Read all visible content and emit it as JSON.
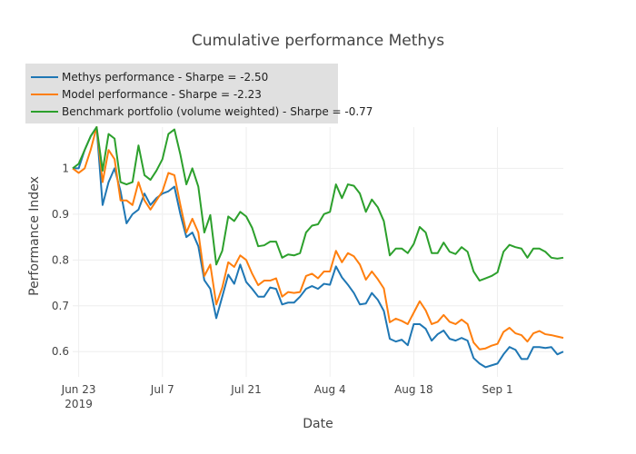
{
  "chart_data": {
    "type": "line",
    "title": "Cumulative performance Methys",
    "x_label": "Date",
    "y_label": "Performance Index",
    "x": [
      "2019-06-22",
      "2019-06-23",
      "2019-06-24",
      "2019-06-25",
      "2019-06-26",
      "2019-06-27",
      "2019-06-28",
      "2019-06-29",
      "2019-06-30",
      "2019-07-01",
      "2019-07-02",
      "2019-07-03",
      "2019-07-04",
      "2019-07-05",
      "2019-07-06",
      "2019-07-07",
      "2019-07-08",
      "2019-07-09",
      "2019-07-10",
      "2019-07-11",
      "2019-07-12",
      "2019-07-13",
      "2019-07-14",
      "2019-07-15",
      "2019-07-16",
      "2019-07-17",
      "2019-07-18",
      "2019-07-19",
      "2019-07-20",
      "2019-07-21",
      "2019-07-22",
      "2019-07-23",
      "2019-07-24",
      "2019-07-25",
      "2019-07-26",
      "2019-07-27",
      "2019-07-28",
      "2019-07-29",
      "2019-07-30",
      "2019-07-31",
      "2019-08-01",
      "2019-08-02",
      "2019-08-03",
      "2019-08-04",
      "2019-08-05",
      "2019-08-06",
      "2019-08-07",
      "2019-08-08",
      "2019-08-09",
      "2019-08-10",
      "2019-08-11",
      "2019-08-12",
      "2019-08-13",
      "2019-08-14",
      "2019-08-15",
      "2019-08-16",
      "2019-08-17",
      "2019-08-18",
      "2019-08-19",
      "2019-08-20",
      "2019-08-21",
      "2019-08-22",
      "2019-08-23",
      "2019-08-24",
      "2019-08-25",
      "2019-08-26",
      "2019-08-27",
      "2019-08-28",
      "2019-08-29",
      "2019-08-30",
      "2019-08-31",
      "2019-09-01",
      "2019-09-02",
      "2019-09-03",
      "2019-09-04",
      "2019-09-05",
      "2019-09-06",
      "2019-09-07",
      "2019-09-08",
      "2019-09-09",
      "2019-09-10",
      "2019-09-11",
      "2019-09-12"
    ],
    "series": [
      {
        "name": "Methys performance - Sharpe = -2.50",
        "color": "#1f77b4",
        "values": [
          1.0,
          1.0,
          1.04,
          1.07,
          1.09,
          0.92,
          0.97,
          1.0,
          0.95,
          0.88,
          0.9,
          0.91,
          0.945,
          0.92,
          0.935,
          0.945,
          0.95,
          0.96,
          0.9,
          0.85,
          0.86,
          0.83,
          0.756,
          0.737,
          0.673,
          0.72,
          0.768,
          0.748,
          0.79,
          0.752,
          0.737,
          0.72,
          0.72,
          0.74,
          0.737,
          0.703,
          0.707,
          0.707,
          0.72,
          0.737,
          0.743,
          0.737,
          0.748,
          0.746,
          0.786,
          0.762,
          0.746,
          0.728,
          0.703,
          0.705,
          0.728,
          0.713,
          0.689,
          0.628,
          0.622,
          0.626,
          0.614,
          0.66,
          0.66,
          0.65,
          0.624,
          0.638,
          0.646,
          0.628,
          0.624,
          0.63,
          0.624,
          0.586,
          0.574,
          0.566,
          0.57,
          0.574,
          0.594,
          0.61,
          0.604,
          0.584,
          0.584,
          0.61,
          0.61,
          0.608,
          0.61,
          0.594,
          0.6
        ]
      },
      {
        "name": "Model performance - Sharpe = -2.23",
        "color": "#ff7f0e",
        "values": [
          1.0,
          0.99,
          1.0,
          1.04,
          1.09,
          0.97,
          1.04,
          1.02,
          0.93,
          0.93,
          0.92,
          0.97,
          0.93,
          0.91,
          0.93,
          0.95,
          0.99,
          0.985,
          0.92,
          0.86,
          0.89,
          0.86,
          0.765,
          0.79,
          0.703,
          0.74,
          0.795,
          0.785,
          0.81,
          0.8,
          0.77,
          0.745,
          0.755,
          0.755,
          0.76,
          0.72,
          0.73,
          0.728,
          0.73,
          0.765,
          0.77,
          0.76,
          0.775,
          0.775,
          0.82,
          0.795,
          0.815,
          0.808,
          0.79,
          0.757,
          0.775,
          0.758,
          0.738,
          0.664,
          0.672,
          0.667,
          0.66,
          0.685,
          0.71,
          0.69,
          0.66,
          0.665,
          0.68,
          0.665,
          0.66,
          0.67,
          0.66,
          0.62,
          0.605,
          0.607,
          0.613,
          0.617,
          0.643,
          0.652,
          0.64,
          0.636,
          0.622,
          0.64,
          0.645,
          0.638,
          0.636,
          0.633,
          0.63
        ]
      },
      {
        "name": "Benchmark portfolio (volume weighted) - Sharpe = -0.77",
        "color": "#2ca02c",
        "values": [
          1.0,
          1.01,
          1.04,
          1.07,
          1.09,
          0.995,
          1.075,
          1.065,
          0.97,
          0.965,
          0.97,
          1.05,
          0.985,
          0.975,
          0.995,
          1.02,
          1.075,
          1.085,
          1.03,
          0.965,
          1.0,
          0.96,
          0.86,
          0.898,
          0.79,
          0.82,
          0.895,
          0.885,
          0.905,
          0.895,
          0.87,
          0.83,
          0.832,
          0.84,
          0.84,
          0.805,
          0.812,
          0.81,
          0.815,
          0.86,
          0.875,
          0.878,
          0.9,
          0.905,
          0.965,
          0.935,
          0.965,
          0.962,
          0.945,
          0.905,
          0.932,
          0.915,
          0.885,
          0.81,
          0.825,
          0.825,
          0.815,
          0.835,
          0.872,
          0.86,
          0.815,
          0.815,
          0.838,
          0.818,
          0.813,
          0.828,
          0.818,
          0.775,
          0.755,
          0.76,
          0.765,
          0.773,
          0.818,
          0.833,
          0.828,
          0.825,
          0.805,
          0.825,
          0.825,
          0.818,
          0.805,
          0.803,
          0.805
        ]
      }
    ],
    "xlim": [
      "2019-06-22",
      "2019-09-12"
    ],
    "xticks": [
      {
        "value": "2019-06-23",
        "label": "Jun 23\n2019"
      },
      {
        "value": "2019-07-07",
        "label": "Jul 7"
      },
      {
        "value": "2019-07-21",
        "label": "Jul 21"
      },
      {
        "value": "2019-08-04",
        "label": "Aug 4"
      },
      {
        "value": "2019-08-18",
        "label": "Aug 18"
      },
      {
        "value": "2019-09-01",
        "label": "Sep 1"
      }
    ],
    "ylim": [
      0.545,
      1.09
    ],
    "yticks": [
      0.6,
      0.7,
      0.8,
      0.9,
      1
    ],
    "grid": true,
    "legend": "top-left"
  }
}
